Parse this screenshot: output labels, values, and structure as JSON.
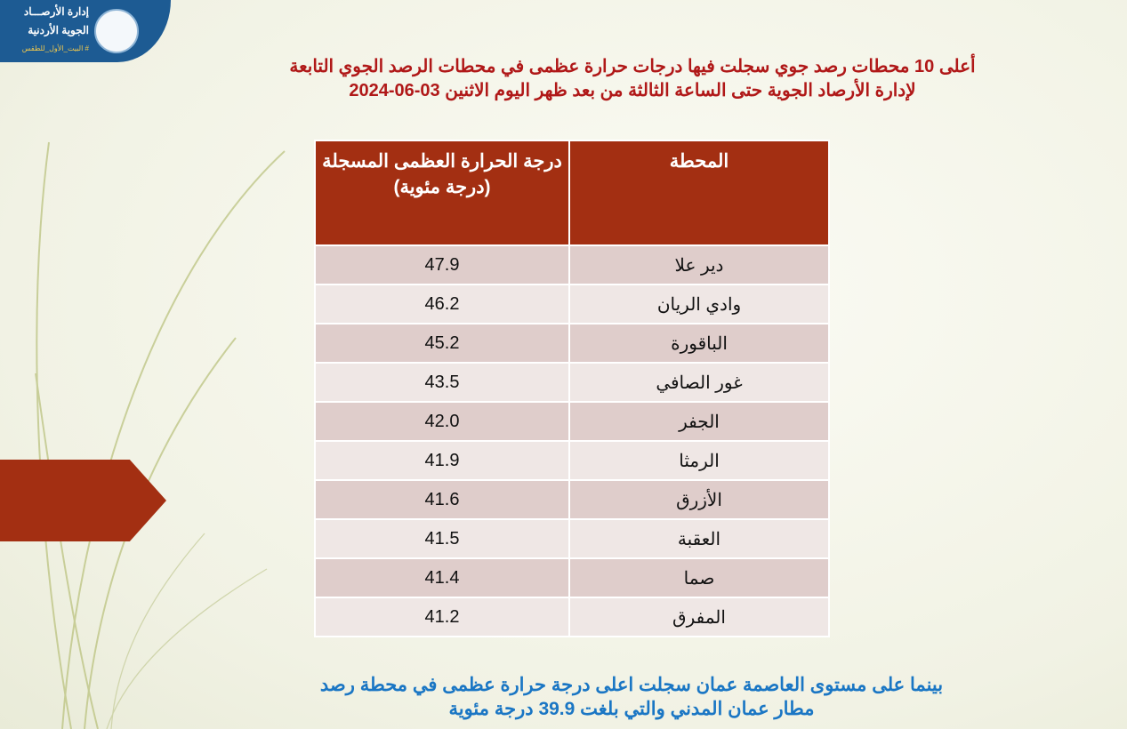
{
  "logo": {
    "line1": "إدارة الأرصـــاد",
    "line2": "الجوية الأردنية",
    "tagline": "# البيت_الأول_للطقس"
  },
  "title": {
    "line1": "أعلى 10 محطات رصد جوي سجلت فيها درجات حرارة عظمى في محطات الرصد الجوي  التابعة",
    "line2": "لإدارة الأرصاد الجوية حتى الساعة الثالثة من بعد ظهر اليوم الاثنين",
    "date": "2024-06-03"
  },
  "table": {
    "headers": {
      "station": "المحطة",
      "temperature": "درجة الحرارة العظمى المسجلة (درجة مئوية)"
    },
    "rows": [
      {
        "station": "دير علا",
        "temp": "47.9"
      },
      {
        "station": "وادي الريان",
        "temp": "46.2"
      },
      {
        "station": "الباقورة",
        "temp": "45.2"
      },
      {
        "station": "غور الصافي",
        "temp": "43.5"
      },
      {
        "station": "الجفر",
        "temp": "42.0"
      },
      {
        "station": "الرمثا",
        "temp": "41.9"
      },
      {
        "station": "الأزرق",
        "temp": "41.6"
      },
      {
        "station": "العقبة",
        "temp": "41.5"
      },
      {
        "station": "صما",
        "temp": "41.4"
      },
      {
        "station": "المفرق",
        "temp": "41.2"
      }
    ]
  },
  "footer": {
    "line1": "بينما على مستوى العاصمة عمان سجلت اعلى درجة حرارة عظمى في محطة رصد",
    "line2": "مطار عمان المدني والتي بلغت 39.9 درجة مئوية"
  },
  "colors": {
    "header": "#a32f12",
    "title": "#b01818",
    "footer": "#1a76c4",
    "logo_bg": "#1d5b93"
  }
}
